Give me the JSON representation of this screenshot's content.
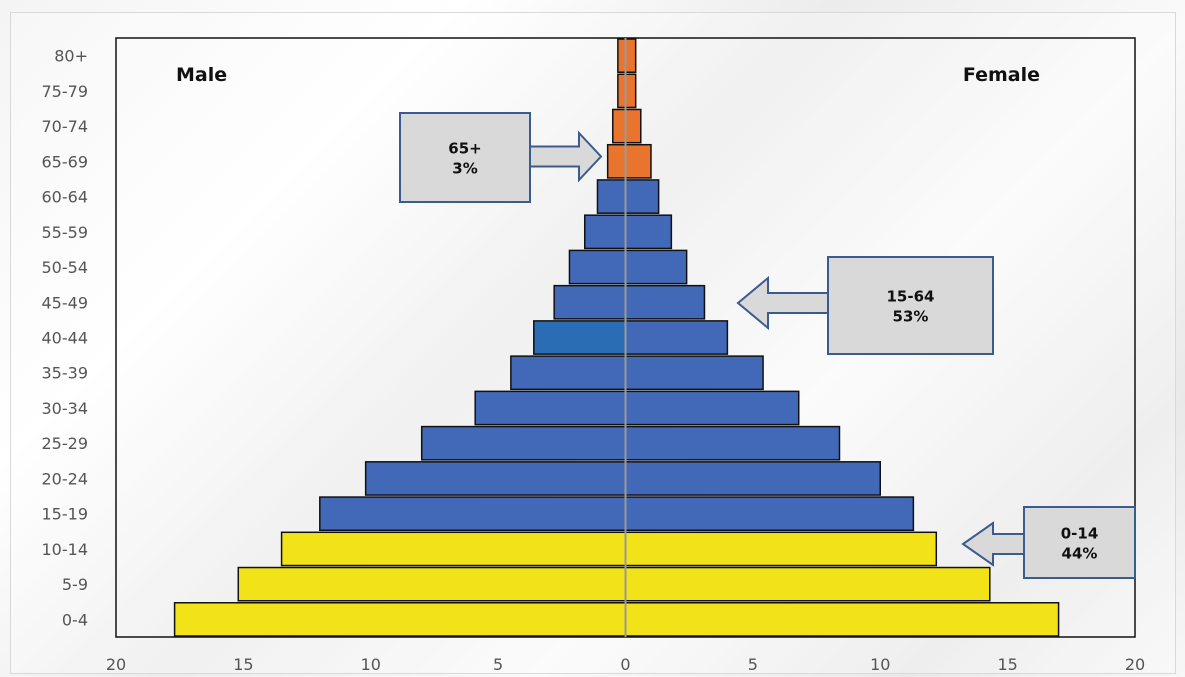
{
  "chart_data": {
    "type": "bar",
    "orientation": "horizontal-pyramid",
    "categories": [
      "0-4",
      "5-9",
      "10-14",
      "15-19",
      "20-24",
      "25-29",
      "30-34",
      "35-39",
      "40-44",
      "45-49",
      "50-54",
      "55-59",
      "60-64",
      "65-69",
      "70-74",
      "75-79",
      "80+"
    ],
    "series": [
      {
        "name": "Male",
        "values": [
          17.7,
          15.2,
          13.5,
          12.0,
          10.2,
          8.0,
          5.9,
          4.5,
          3.6,
          2.8,
          2.2,
          1.6,
          1.1,
          0.7,
          0.5,
          0.3,
          0.3
        ]
      },
      {
        "name": "Female",
        "values": [
          17.0,
          14.3,
          12.2,
          11.3,
          10.0,
          8.4,
          6.8,
          5.4,
          4.0,
          3.1,
          2.4,
          1.8,
          1.3,
          1.0,
          0.6,
          0.4,
          0.4
        ]
      }
    ],
    "x_ticks": [
      "20",
      "15",
      "10",
      "5",
      "0",
      "5",
      "10",
      "15",
      "20"
    ],
    "xlim": [
      -20,
      20
    ],
    "grid": false,
    "bar_colors": {
      "0-14": "#f2e318",
      "15-64": "#4169b8",
      "65+": "#e8742e",
      "highlight_40-44_male": "#2a6db5"
    },
    "groups": {
      "0-14": [
        0,
        2
      ],
      "15-64": [
        3,
        12
      ],
      "65+": [
        13,
        16
      ]
    },
    "side_labels": {
      "left": "Male",
      "right": "Female"
    },
    "annotations": [
      {
        "title": "65+",
        "value": "3%",
        "arrow": "right"
      },
      {
        "title": "15-64",
        "value": "53%",
        "arrow": "left"
      },
      {
        "title": "0-14",
        "value": "44%",
        "arrow": "left"
      }
    ]
  }
}
